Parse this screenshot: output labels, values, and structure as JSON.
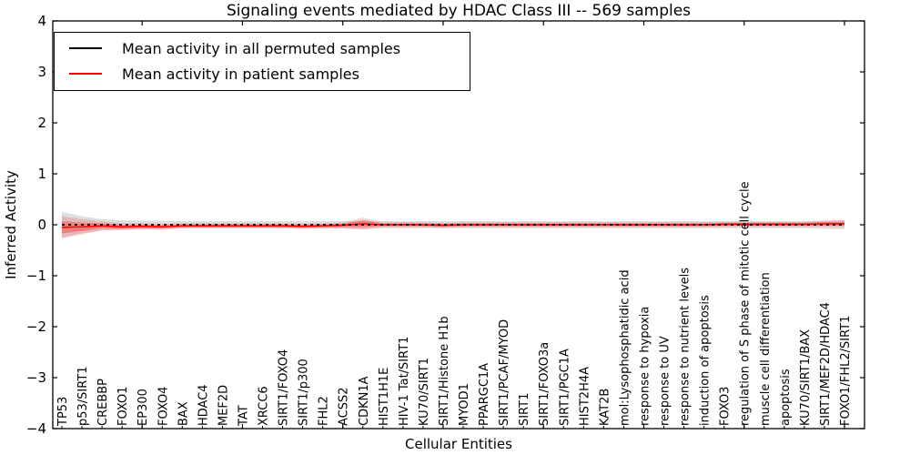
{
  "chart_data": {
    "type": "line",
    "title": "Signaling events mediated by HDAC Class III -- 569 samples",
    "xlabel": "Cellular Entities",
    "ylabel": "Inferred Activity",
    "ylim": [
      -4,
      4
    ],
    "yticks": [
      4,
      3,
      2,
      1,
      0,
      -1,
      -2,
      -3,
      -4
    ],
    "grid": false,
    "legend_position": "upper left",
    "categories": [
      "TP53",
      "p53/SIRT1",
      "CREBBP",
      "FOXO1",
      "EP300",
      "FOXO4",
      "BAX",
      "HDAC4",
      "MEF2D",
      "TAT",
      "XRCC6",
      "SIRT1/FOXO4",
      "SIRT1/p300",
      "FHL2",
      "ACSS2",
      "CDKN1A",
      "HIST1H1E",
      "HIV-1 Tat/SIRT1",
      "KU70/SIRT1",
      "SIRT1/Histone H1b",
      "MYOD1",
      "PPARGC1A",
      "SIRT1/PCAF/MYOD",
      "SIRT1",
      "SIRT1/FOXO3a",
      "SIRT1/PGC1A",
      "HIST2H4A",
      "KAT2B",
      "mol:Lysophosphatidic acid",
      "response to hypoxia",
      "response to UV",
      "response to nutrient levels",
      "induction of apoptosis",
      "FOXO3",
      "regulation of S phase of mitotic cell cycle",
      "muscle cell differentiation",
      "apoptosis",
      "KU70/SIRT1/BAX",
      "SIRT1/MEF2D/HDAC4",
      "FOXO1/FHL2/SIRT1"
    ],
    "series": [
      {
        "name": "Mean activity in all permuted samples",
        "color": "#000000",
        "line_style": "dashed",
        "values": [
          0,
          0,
          0,
          0,
          0,
          0,
          0,
          0,
          0,
          0,
          0,
          0,
          0,
          0,
          0,
          0,
          0,
          0,
          0,
          0,
          0,
          0,
          0,
          0,
          0,
          0,
          0,
          0,
          0,
          0,
          0,
          0,
          0,
          0,
          0,
          0,
          0,
          0,
          0,
          0
        ],
        "band_halfwidth": [
          0.25,
          0.17,
          0.11,
          0.09,
          0.08,
          0.08,
          0.07,
          0.07,
          0.07,
          0.07,
          0.07,
          0.07,
          0.07,
          0.07,
          0.07,
          0.08,
          0.07,
          0.07,
          0.07,
          0.07,
          0.07,
          0.07,
          0.07,
          0.07,
          0.07,
          0.07,
          0.07,
          0.07,
          0.07,
          0.07,
          0.07,
          0.07,
          0.07,
          0.07,
          0.07,
          0.07,
          0.07,
          0.07,
          0.08,
          0.09
        ],
        "band_color": "rgba(0,0,0,0.13)"
      },
      {
        "name": "Mean activity in patient samples",
        "color": "#ff0000",
        "line_style": "solid",
        "values": [
          -0.05,
          -0.04,
          -0.02,
          -0.04,
          -0.03,
          -0.04,
          -0.02,
          -0.02,
          -0.02,
          -0.02,
          -0.02,
          -0.02,
          -0.03,
          -0.02,
          -0.01,
          0.02,
          0,
          0,
          0,
          -0.01,
          0,
          0,
          0,
          0,
          0,
          0,
          0,
          0,
          0,
          0,
          0,
          0,
          0,
          0.01,
          0.01,
          0.01,
          0.01,
          0.01,
          0.02,
          0.02
        ],
        "band_halfwidth": [
          0.22,
          0.15,
          0.09,
          0.07,
          0.06,
          0.06,
          0.05,
          0.05,
          0.05,
          0.05,
          0.05,
          0.05,
          0.05,
          0.05,
          0.06,
          0.12,
          0.05,
          0.05,
          0.05,
          0.05,
          0.05,
          0.05,
          0.05,
          0.05,
          0.05,
          0.05,
          0.05,
          0.05,
          0.05,
          0.05,
          0.05,
          0.05,
          0.05,
          0.05,
          0.05,
          0.05,
          0.05,
          0.05,
          0.06,
          0.07
        ],
        "band_color": "rgba(255,0,0,0.16)",
        "band_color_inner": "rgba(255,0,0,0.30)"
      }
    ]
  }
}
